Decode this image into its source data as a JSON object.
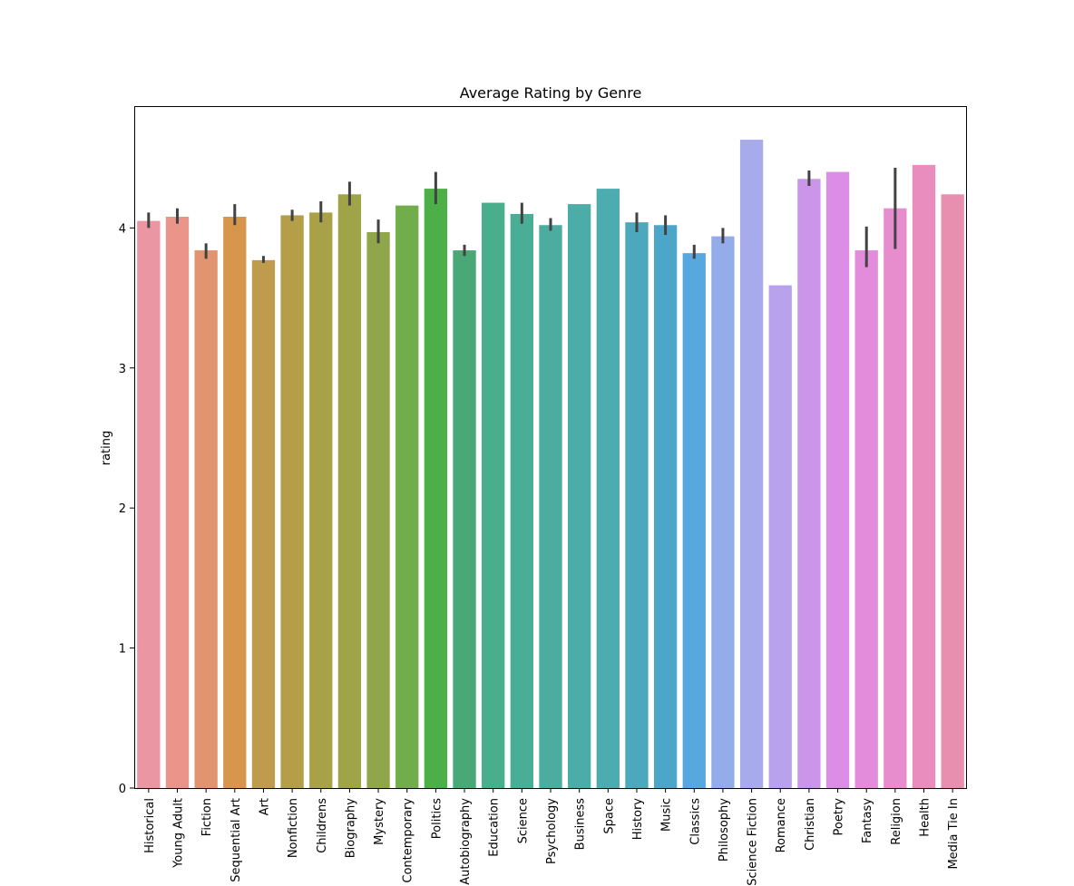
{
  "chart_data": {
    "type": "bar",
    "title": "Average Rating by Genre",
    "xlabel": "",
    "ylabel": "rating",
    "ylim": [
      0,
      4.87
    ],
    "yticks": [
      "0",
      "1",
      "2",
      "3",
      "4"
    ],
    "grid": false,
    "legend": "none",
    "categories": [
      "Historical",
      "Young Adult",
      "Fiction",
      "Sequential Art",
      "Art",
      "Nonfiction",
      "Childrens",
      "Biography",
      "Mystery",
      "Contemporary",
      "Politics",
      "Autobiography",
      "Education",
      "Science",
      "Psychology",
      "Business",
      "Space",
      "History",
      "Music",
      "Classics",
      "Philosophy",
      "Science Fiction",
      "Romance",
      "Christian",
      "Poetry",
      "Fantasy",
      "Religion",
      "Health",
      "Media Tie In"
    ],
    "values": [
      4.05,
      4.08,
      3.84,
      4.08,
      3.77,
      4.09,
      4.11,
      4.24,
      3.97,
      4.16,
      4.28,
      3.84,
      4.18,
      4.1,
      4.02,
      4.17,
      4.28,
      4.04,
      4.02,
      3.82,
      3.94,
      4.63,
      3.59,
      4.35,
      4.4,
      3.84,
      4.14,
      4.45,
      4.24
    ],
    "error_low": [
      4.0,
      4.03,
      3.78,
      4.02,
      3.75,
      4.05,
      4.04,
      4.16,
      3.89,
      null,
      4.17,
      3.8,
      null,
      4.03,
      3.98,
      null,
      null,
      3.97,
      3.95,
      3.78,
      3.89,
      null,
      null,
      4.3,
      null,
      3.72,
      3.85,
      null,
      null
    ],
    "error_high": [
      4.11,
      4.14,
      3.89,
      4.17,
      3.8,
      4.13,
      4.19,
      4.33,
      4.06,
      null,
      4.4,
      3.88,
      null,
      4.18,
      4.07,
      null,
      null,
      4.11,
      4.09,
      3.88,
      4.0,
      null,
      null,
      4.41,
      null,
      4.01,
      4.43,
      null,
      null
    ],
    "colors": [
      "#ea96a3",
      "#e9958a",
      "#e29470",
      "#d6974c",
      "#bf9c4d",
      "#b49e47",
      "#a9a147",
      "#9ea447",
      "#8fa74a",
      "#72ad4b",
      "#4caf47",
      "#4aa876",
      "#49ae8c",
      "#4aad95",
      "#4bac9f",
      "#4caca8",
      "#4cacb0",
      "#4ba8bd",
      "#4ba6ca",
      "#56a8df",
      "#94acea",
      "#a8abeb",
      "#b9a2ed",
      "#cb96e9",
      "#dc8ee6",
      "#e38cdc",
      "#e78dcd",
      "#e98dbf",
      "#e88fb0"
    ]
  }
}
